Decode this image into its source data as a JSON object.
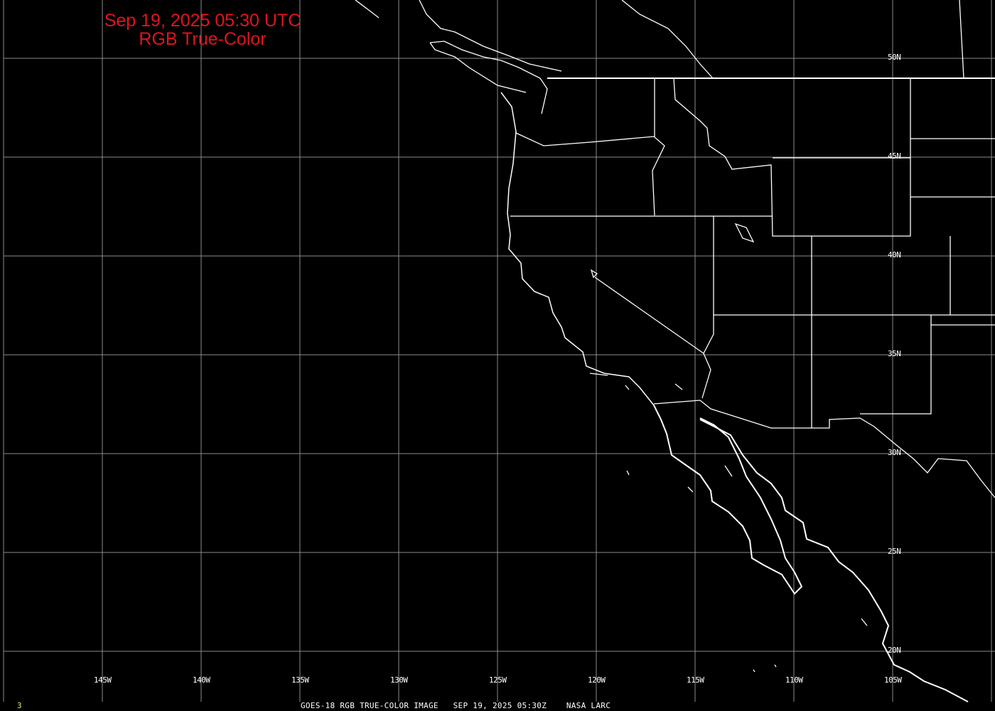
{
  "title": {
    "line1": "Sep 19, 2025 05:30 UTC",
    "line2": "RGB True-Color"
  },
  "footer": {
    "caption": "GOES-18 RGB TRUE-COLOR IMAGE   SEP 19, 2025 05:30Z    NASA LARC",
    "frame_number": "3"
  },
  "grid": {
    "longitudes": [
      "145W",
      "140W",
      "135W",
      "130W",
      "125W",
      "120W",
      "115W",
      "110W",
      "105W"
    ],
    "latitudes": [
      "50N",
      "45N",
      "40N",
      "35N",
      "30N",
      "25N",
      "20N"
    ]
  },
  "colors": {
    "background": "#000000",
    "title": "#e0141e",
    "grid": "#8c8c8c",
    "borders": "#ffffff",
    "frame_number": "#e8e070"
  }
}
